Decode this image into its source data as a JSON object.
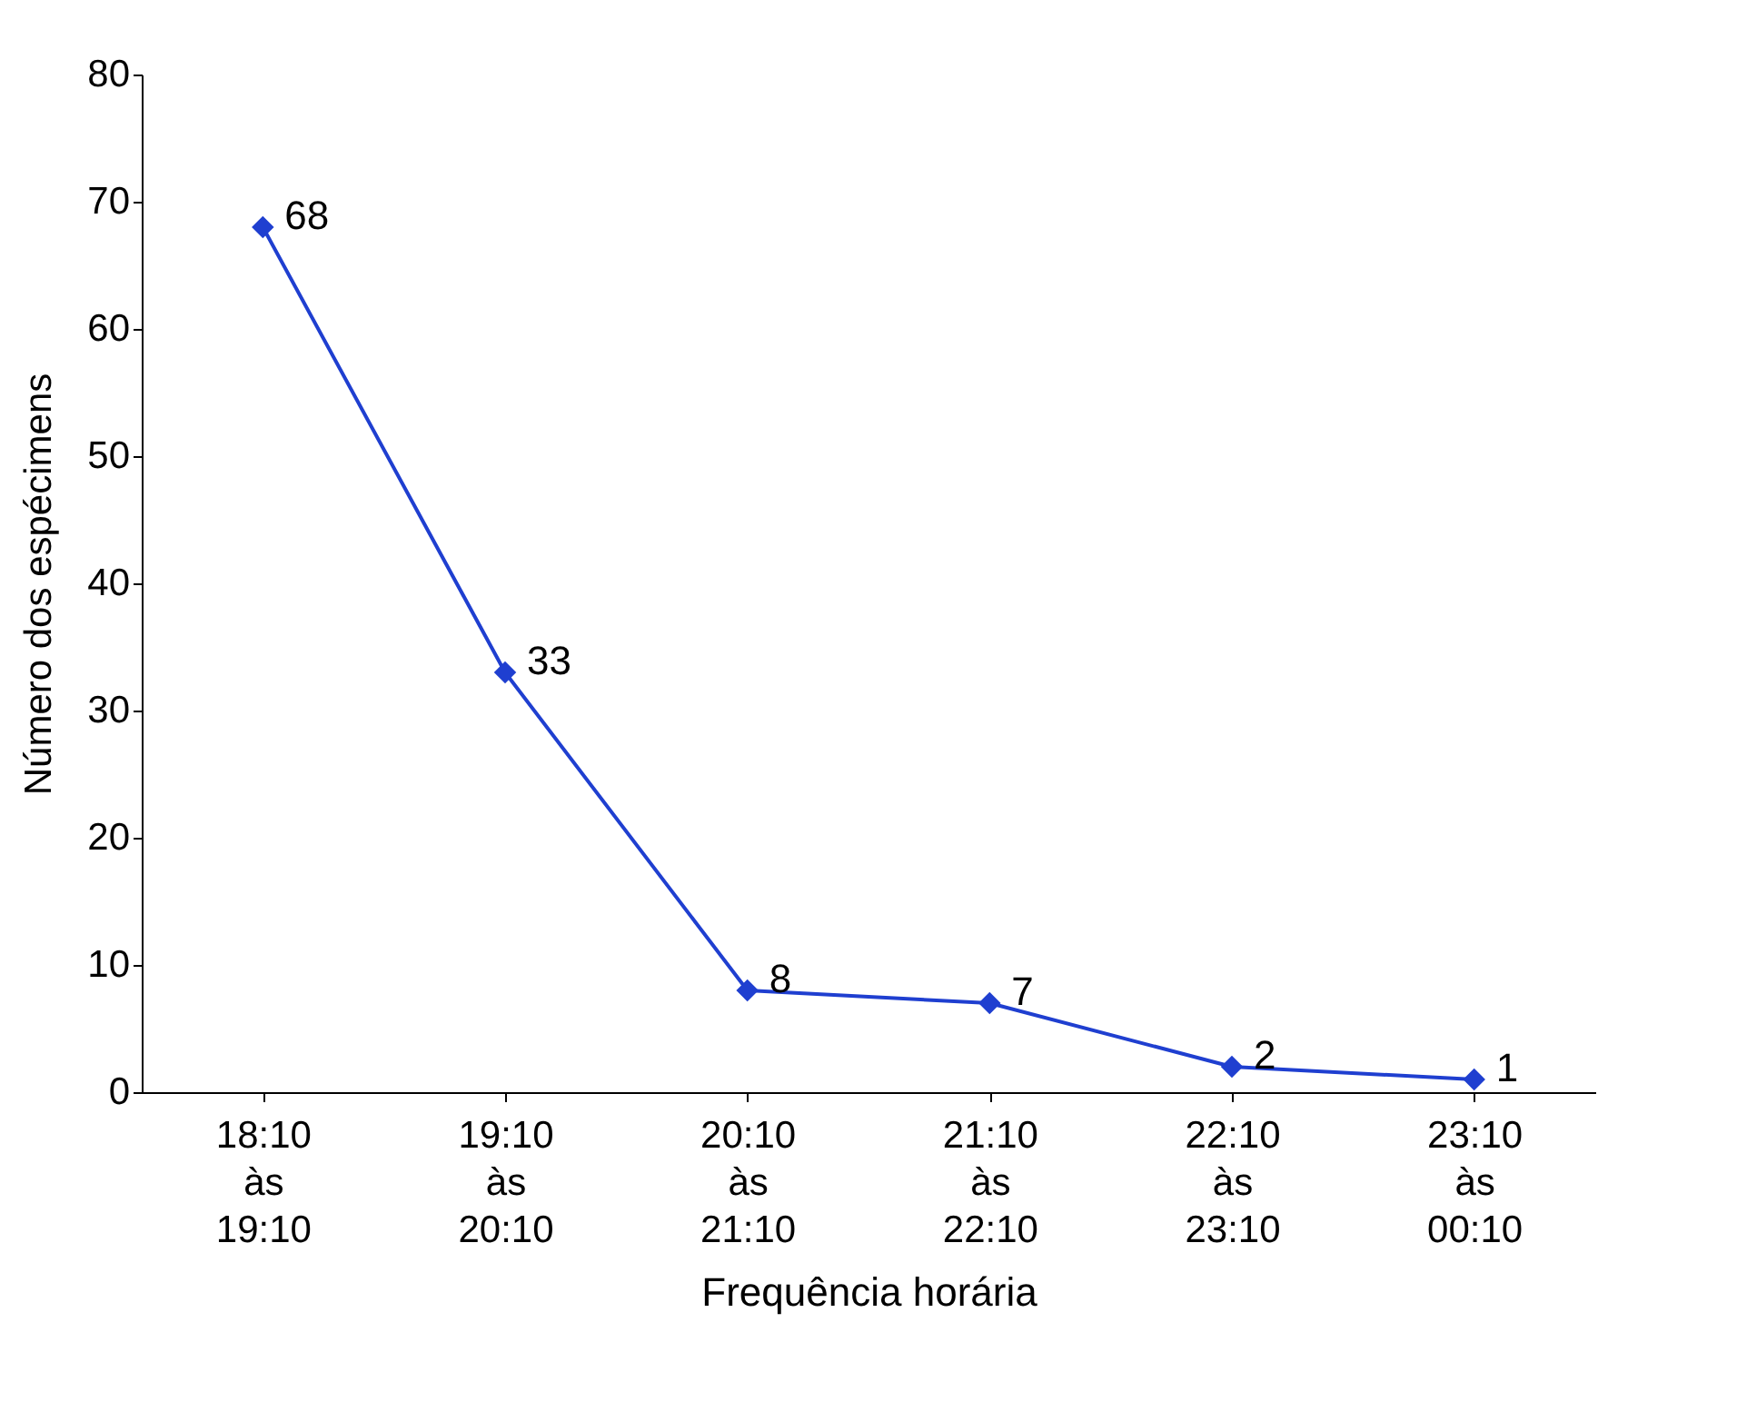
{
  "chart_data": {
    "type": "line",
    "xlabel": "Frequência horária",
    "ylabel": "Número dos espécimens",
    "categories": [
      "18:10\nàs\n19:10",
      "19:10\nàs\n20:10",
      "20:10\nàs\n21:10",
      "21:10\nàs\n22:10",
      "22:10\nàs\n23:10",
      "23:10\nàs\n00:10"
    ],
    "series": [
      {
        "color": "#1f3fd0",
        "values": [
          68,
          33,
          8,
          7,
          2,
          1
        ]
      }
    ],
    "ylim": [
      0,
      80
    ],
    "yticks": [
      0,
      10,
      20,
      30,
      40,
      50,
      60,
      70,
      80
    ],
    "grid": false,
    "legend": false,
    "marker": "diamond",
    "line_style": "solid",
    "data_labels": true
  }
}
